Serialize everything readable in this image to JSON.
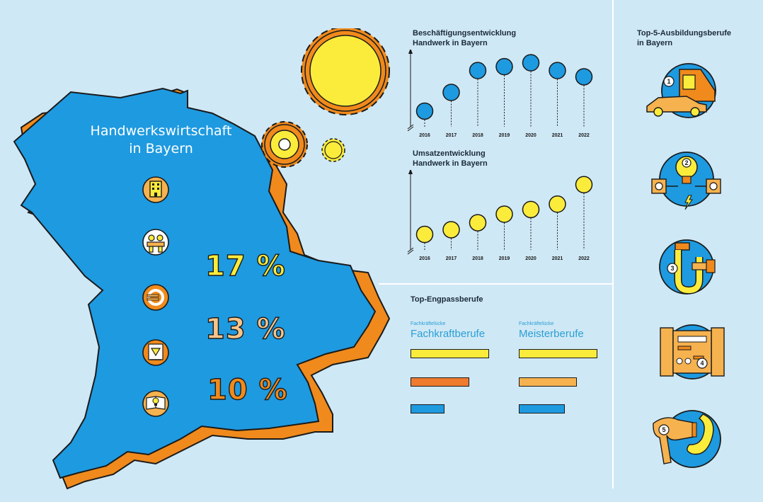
{
  "map": {
    "title_line1": "Handwerkswirtschaft",
    "title_line2": "in Bayern",
    "percent_1": "17 %",
    "percent_2": "13 %",
    "percent_3": "10 %",
    "icons": [
      "building-icon",
      "workers-icon",
      "euro-icon",
      "download-arrow-icon",
      "book-lightbulb-icon"
    ]
  },
  "colors": {
    "background": "#cfe8f5",
    "blue": "#1e9ae0",
    "orange": "#f08a1c",
    "yellow": "#fbec3c",
    "light_orange": "#f6b24f",
    "red_orange": "#ef7b2e"
  },
  "employment": {
    "title_line1": "Beschäftigungsentwicklung",
    "title_line2": "Handwerk in Bayern"
  },
  "revenue": {
    "title_line1": "Umsatzentwicklung",
    "title_line2": "Handwerk in Bayern"
  },
  "shortage": {
    "title": "Top-Engpassberufe",
    "col1_small": "Fachkräftelücke",
    "col1_label": "Fachkraftberufe",
    "col2_small": "Fachkräftelücke",
    "col2_label": "Meisterberufe"
  },
  "training": {
    "title_line1": "Top-5-Ausbildungsberufe",
    "title_line2": "in Bayern",
    "items": [
      {
        "rank": "1",
        "icon": "car-icon"
      },
      {
        "rank": "2",
        "icon": "lightbulb-socket-icon"
      },
      {
        "rank": "3",
        "icon": "pipe-wrench-icon"
      },
      {
        "rank": "4",
        "icon": "toolbox-icon"
      },
      {
        "rank": "5",
        "icon": "hairdryer-icon"
      }
    ]
  },
  "chart_data": [
    {
      "type": "scatter",
      "title": "Beschäftigungsentwicklung Handwerk in Bayern",
      "categories": [
        "2016",
        "2017",
        "2018",
        "2019",
        "2020",
        "2021",
        "2022"
      ],
      "values": [
        1.0,
        2.2,
        3.6,
        3.85,
        4.1,
        3.6,
        3.2
      ],
      "ylim": [
        0,
        4.4
      ],
      "color": "#1e9ae0",
      "grid": false
    },
    {
      "type": "scatter",
      "title": "Umsatzentwicklung Handwerk in Bayern",
      "categories": [
        "2016",
        "2017",
        "2018",
        "2019",
        "2020",
        "2021",
        "2022"
      ],
      "values": [
        1.0,
        1.3,
        1.75,
        2.3,
        2.6,
        2.95,
        4.2
      ],
      "ylim": [
        0,
        4.6
      ],
      "color": "#fbec3c",
      "grid": false
    },
    {
      "type": "bar",
      "title": "Top-Engpassberufe",
      "series": [
        {
          "name": "Fachkraftberufe",
          "values": [
            1.0,
            0.75,
            0.43
          ]
        },
        {
          "name": "Meisterberufe",
          "values": [
            1.0,
            0.74,
            0.59
          ]
        }
      ],
      "colors": [
        "#fbec3c",
        "#ef7b2e",
        "#1e9ae0"
      ],
      "colors_meister": [
        "#fbec3c",
        "#f6b24f",
        "#1e9ae0"
      ]
    }
  ]
}
